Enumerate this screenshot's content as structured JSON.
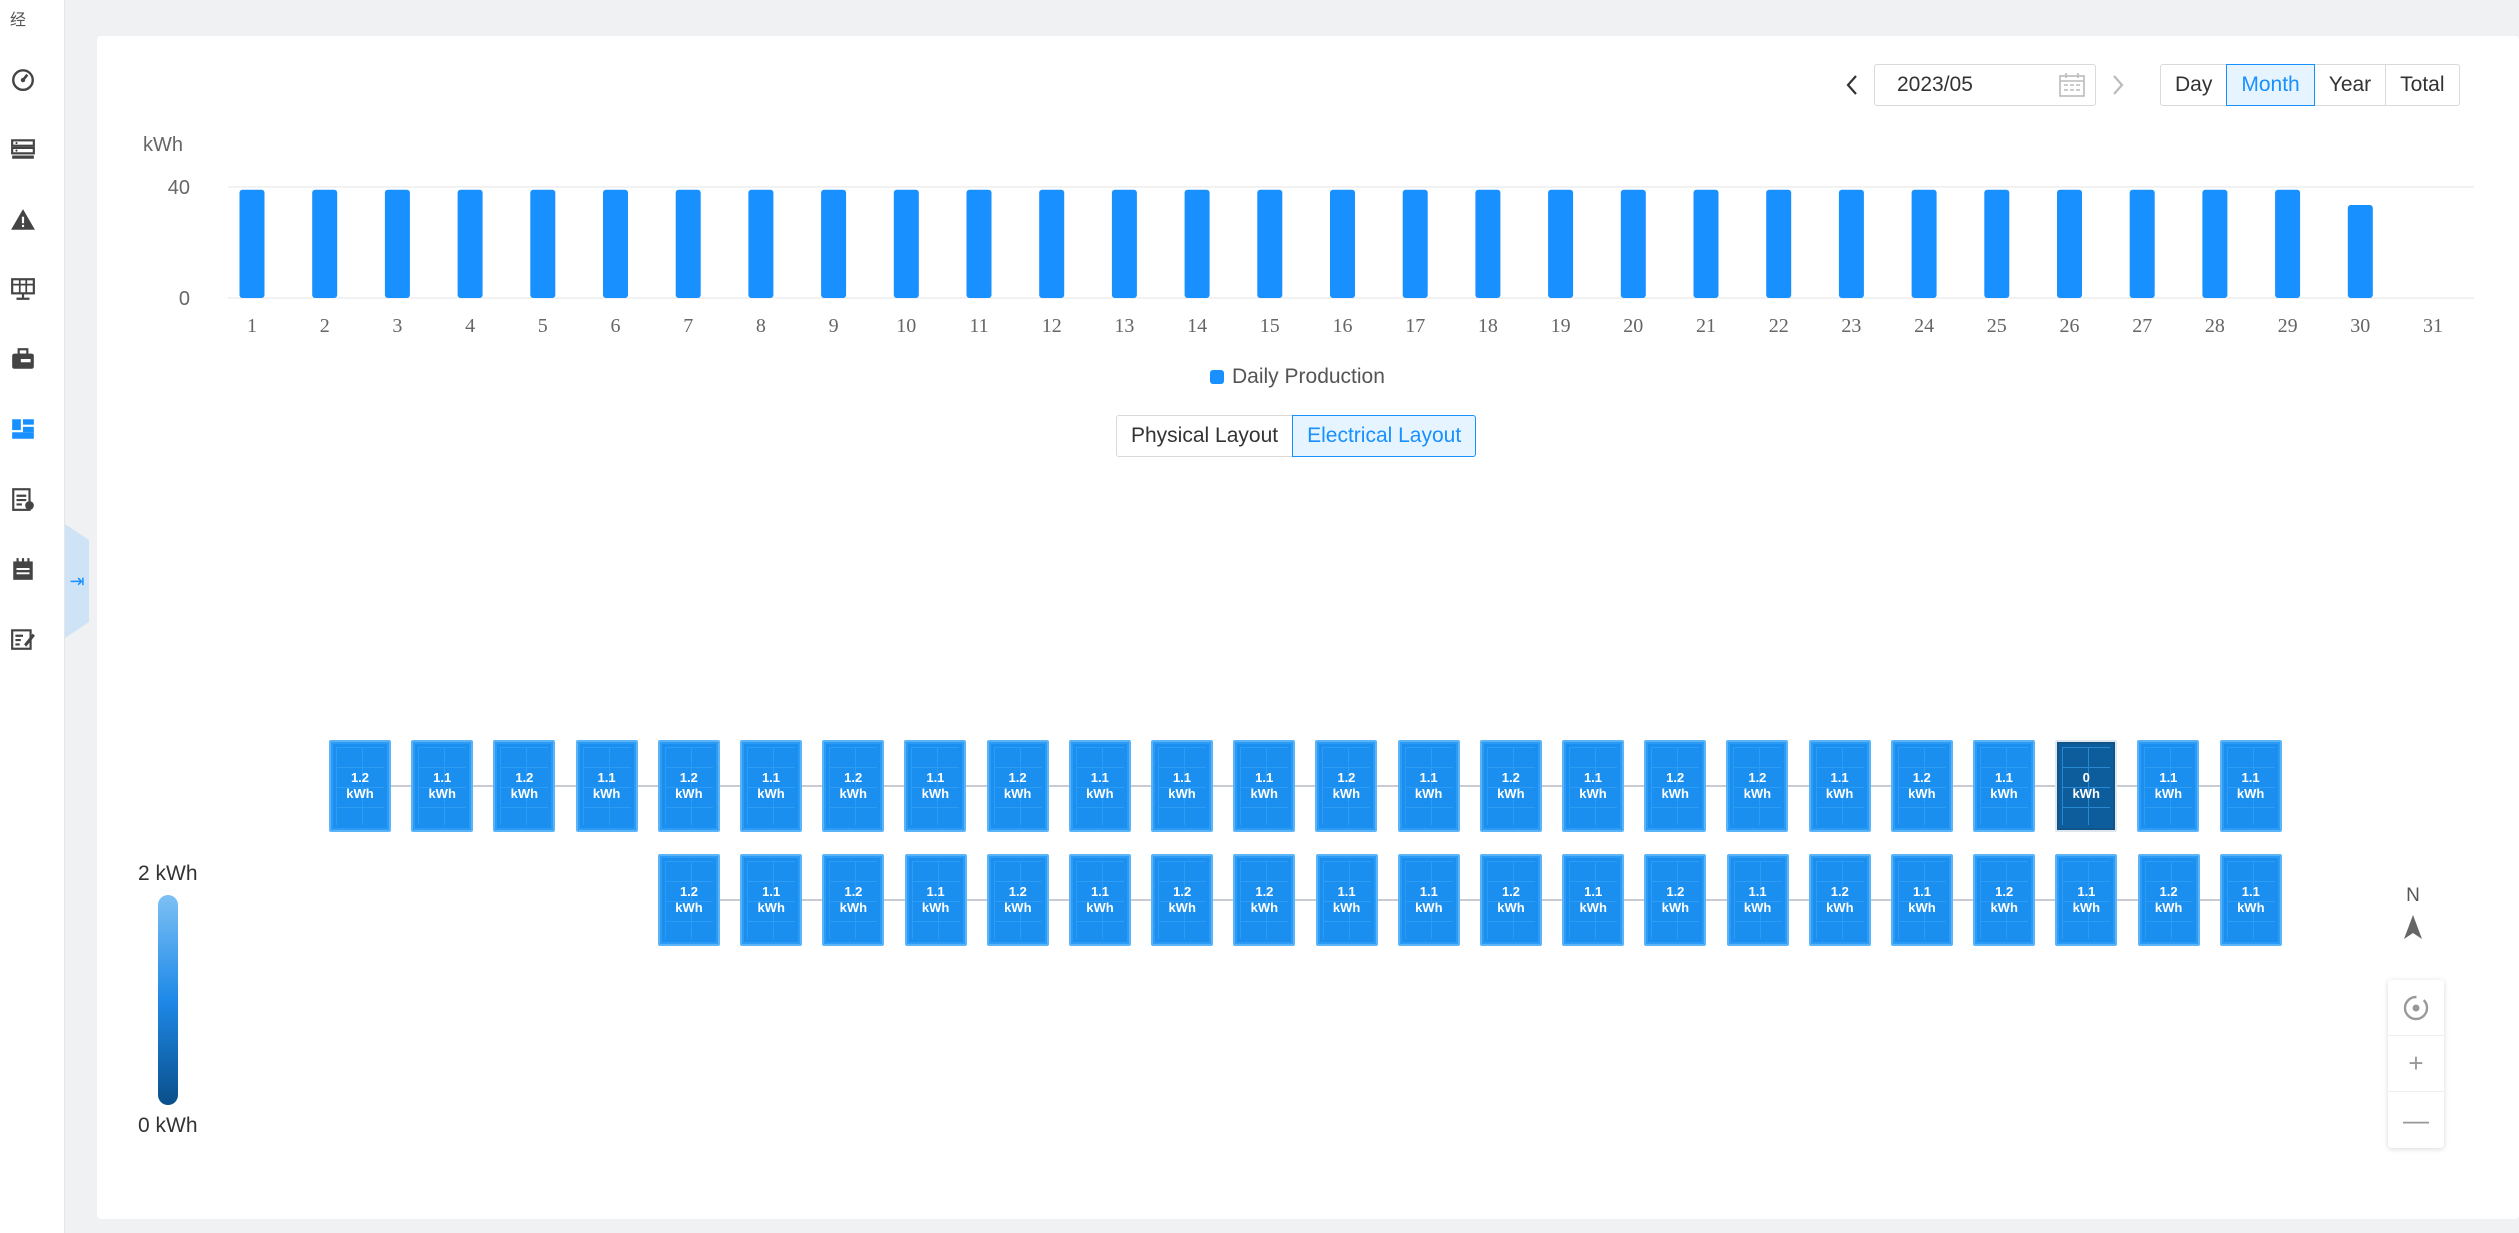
{
  "sidebar": {
    "top_glyph": "经",
    "items": [
      {
        "icon": "dashboard-gauge-icon"
      },
      {
        "icon": "server-list-icon"
      },
      {
        "icon": "alarm-warning-icon"
      },
      {
        "icon": "solar-monitor-icon"
      },
      {
        "icon": "toolbox-icon"
      },
      {
        "icon": "layout-grid-icon",
        "active": true
      },
      {
        "icon": "clipboard-report-icon"
      },
      {
        "icon": "calendar-log-icon"
      },
      {
        "icon": "edit-notes-icon"
      }
    ],
    "collapse_glyph": "⇥"
  },
  "date_nav": {
    "value": "2023/05"
  },
  "period_tabs": [
    "Day",
    "Month",
    "Year",
    "Total"
  ],
  "period_active": "Month",
  "layout_tabs": [
    "Physical Layout",
    "Electrical Layout"
  ],
  "layout_active": "Electrical Layout",
  "chart_data": {
    "type": "bar",
    "ylabel": "kWh",
    "ylim": [
      0,
      40
    ],
    "yticks": [
      0,
      40
    ],
    "categories": [
      "1",
      "2",
      "3",
      "4",
      "5",
      "6",
      "7",
      "8",
      "9",
      "10",
      "11",
      "12",
      "13",
      "14",
      "15",
      "16",
      "17",
      "18",
      "19",
      "20",
      "21",
      "22",
      "23",
      "24",
      "25",
      "26",
      "27",
      "28",
      "29",
      "30",
      "31"
    ],
    "series": [
      {
        "name": "Daily Production",
        "color": "#1890ff",
        "values": [
          39,
          39,
          39,
          39,
          39,
          39,
          39,
          39,
          39,
          39,
          39,
          39,
          39,
          39,
          39,
          39,
          39,
          39,
          39,
          39,
          39,
          39,
          39,
          39,
          39,
          39,
          39,
          39,
          39,
          33.5,
          null
        ]
      }
    ],
    "legend_position": "bottom-center",
    "grid": true
  },
  "panels": {
    "unit": "kWh",
    "row1": [
      "1.2",
      "1.1",
      "1.2",
      "1.1",
      "1.2",
      "1.1",
      "1.2",
      "1.1",
      "1.2",
      "1.1",
      "1.1",
      "1.1",
      "1.2",
      "1.1",
      "1.2",
      "1.1",
      "1.2",
      "1.2",
      "1.1",
      "1.2",
      "1.1",
      "0",
      "1.1",
      "1.1"
    ],
    "row2": [
      "1.2",
      "1.1",
      "1.2",
      "1.1",
      "1.2",
      "1.1",
      "1.2",
      "1.2",
      "1.1",
      "1.1",
      "1.2",
      "1.1",
      "1.2",
      "1.1",
      "1.2",
      "1.1",
      "1.2",
      "1.1",
      "1.2",
      "1.1"
    ]
  },
  "scale": {
    "max_label": "2 kWh",
    "min_label": "0 kWh"
  },
  "compass": {
    "label": "N"
  },
  "map_controls": {
    "zoom_in": "+",
    "zoom_out": "—"
  }
}
